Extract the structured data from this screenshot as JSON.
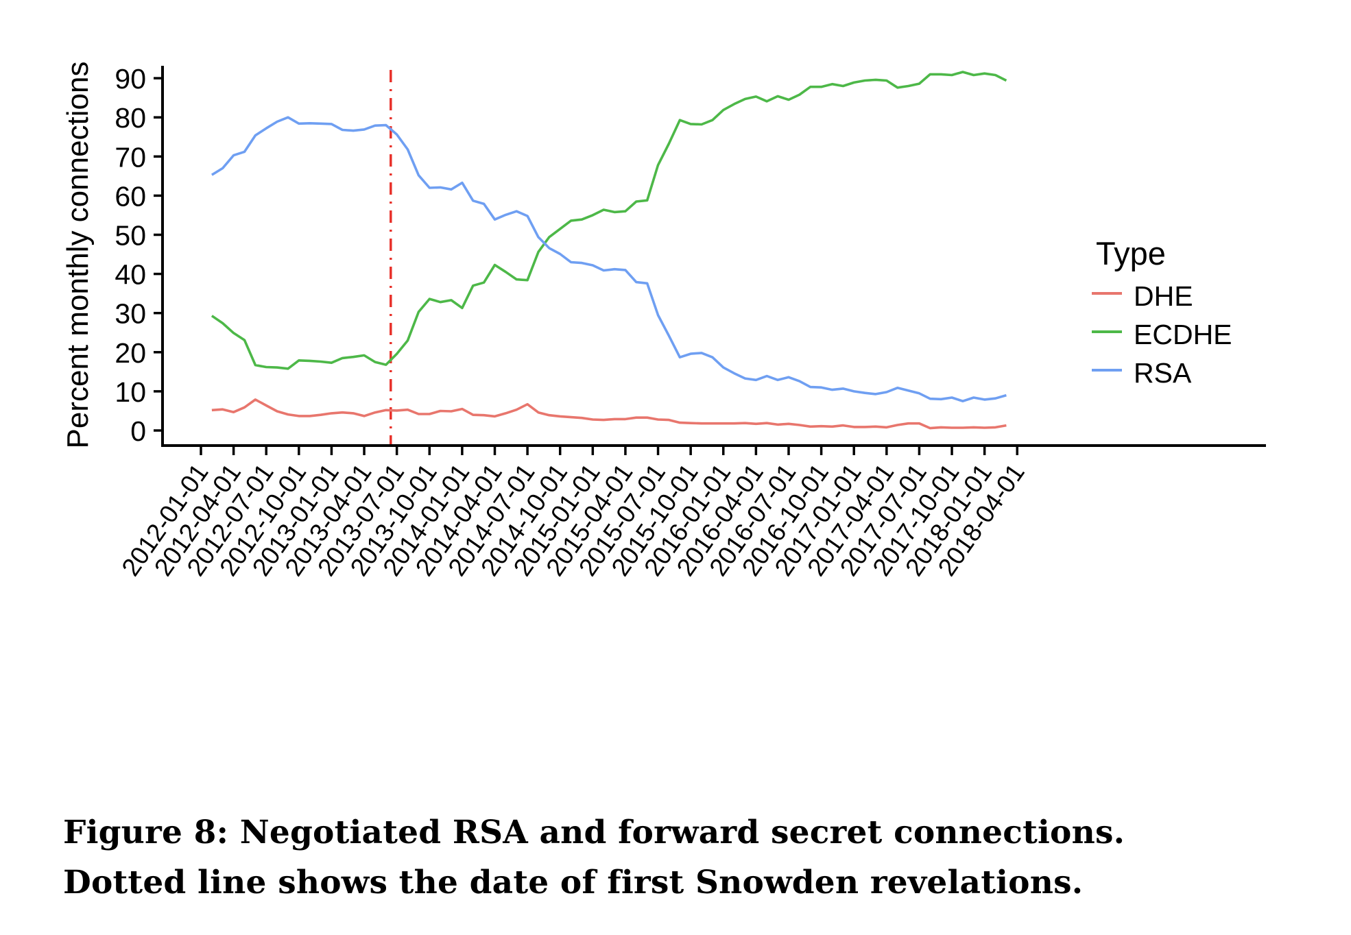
{
  "chart_data": {
    "type": "line",
    "title": "",
    "xlabel": "",
    "ylabel": "Percent monthly connections",
    "ylim": [
      -3,
      97
    ],
    "yticks": [
      0,
      10,
      20,
      30,
      40,
      50,
      60,
      70,
      80,
      90
    ],
    "xticks": [
      "2012-01-01",
      "2012-04-01",
      "2012-07-01",
      "2012-10-01",
      "2013-01-01",
      "2013-04-01",
      "2013-07-01",
      "2013-10-01",
      "2014-01-01",
      "2014-04-01",
      "2014-07-01",
      "2014-10-01",
      "2015-01-01",
      "2015-04-01",
      "2015-07-01",
      "2015-10-01",
      "2016-01-01",
      "2016-04-01",
      "2016-07-01",
      "2016-10-01",
      "2017-01-01",
      "2017-04-01",
      "2017-07-01",
      "2017-10-01",
      "2018-01-01",
      "2018-04-01"
    ],
    "x_start": "2012-02",
    "x_step": "1 month",
    "grid": false,
    "legend": {
      "title": "Type",
      "position": "right"
    },
    "annotations": [
      {
        "type": "vline",
        "x": "2013-06",
        "style": "dash-dot",
        "color": "#e8312a",
        "meaning": "date of first Snowden revelations"
      }
    ],
    "series": [
      {
        "name": "DHE",
        "color": "#e8766d",
        "values": [
          5.2,
          5.4,
          4.7,
          5.9,
          7.9,
          6.4,
          4.9,
          4.1,
          3.7,
          3.7,
          4.0,
          4.4,
          4.6,
          4.4,
          3.7,
          4.6,
          5.2,
          5.1,
          5.3,
          4.2,
          4.2,
          5.0,
          4.9,
          5.5,
          4.0,
          3.9,
          3.6,
          4.4,
          5.3,
          6.7,
          4.6,
          3.9,
          3.6,
          3.4,
          3.2,
          2.8,
          2.7,
          2.9,
          2.9,
          3.3,
          3.3,
          2.8,
          2.7,
          2.0,
          1.9,
          1.8,
          1.8,
          1.8,
          1.8,
          1.9,
          1.7,
          1.9,
          1.5,
          1.7,
          1.4,
          1.0,
          1.1,
          1.0,
          1.3,
          0.9,
          0.9,
          1.0,
          0.8,
          1.4,
          1.8,
          1.8,
          0.6,
          0.8,
          0.7,
          0.7,
          0.8,
          0.7,
          0.8,
          1.3
        ]
      },
      {
        "name": "ECDHE",
        "color": "#4db848",
        "values": [
          29.3,
          27.4,
          24.9,
          23.1,
          16.7,
          16.2,
          16.1,
          15.8,
          17.9,
          17.8,
          17.6,
          17.3,
          18.5,
          18.8,
          19.2,
          17.5,
          16.8,
          19.6,
          23.0,
          30.3,
          33.6,
          32.8,
          33.3,
          31.3,
          37.0,
          37.8,
          42.3,
          40.5,
          38.6,
          38.4,
          45.6,
          49.4,
          51.5,
          53.6,
          53.9,
          55.0,
          56.4,
          55.8,
          56.0,
          58.5,
          58.8,
          67.8,
          73.3,
          79.3,
          78.3,
          78.2,
          79.3,
          81.9,
          83.4,
          84.7,
          85.3,
          84.1,
          85.4,
          84.5,
          85.8,
          87.8,
          87.8,
          88.5,
          88.0,
          88.9,
          89.4,
          89.6,
          89.4,
          87.6,
          88.0,
          88.6,
          91.0,
          91.0,
          90.8,
          91.6,
          90.8,
          91.2,
          90.8,
          89.4
        ]
      },
      {
        "name": "RSA",
        "color": "#6f9ff2",
        "values": [
          65.3,
          67.0,
          70.3,
          71.2,
          75.4,
          77.2,
          78.9,
          80.0,
          78.4,
          78.5,
          78.4,
          78.3,
          76.8,
          76.6,
          76.9,
          77.9,
          78.0,
          75.6,
          71.8,
          65.2,
          62.0,
          62.1,
          61.6,
          63.3,
          58.7,
          57.9,
          53.9,
          55.1,
          56.0,
          54.8,
          49.4,
          46.6,
          45.1,
          43.0,
          42.8,
          42.2,
          40.9,
          41.2,
          41.0,
          37.9,
          37.6,
          29.5,
          24.2,
          18.7,
          19.6,
          19.8,
          18.7,
          16.1,
          14.6,
          13.3,
          12.9,
          13.9,
          12.9,
          13.6,
          12.6,
          11.1,
          11.0,
          10.4,
          10.7,
          10.0,
          9.6,
          9.3,
          9.8,
          10.9,
          10.2,
          9.5,
          8.1,
          8.0,
          8.4,
          7.5,
          8.4,
          7.9,
          8.2,
          9.0
        ]
      }
    ]
  },
  "legend": {
    "title": "Type",
    "items": [
      {
        "label": "DHE",
        "color": "#e8766d"
      },
      {
        "label": "ECDHE",
        "color": "#4db848"
      },
      {
        "label": "RSA",
        "color": "#6f9ff2"
      }
    ]
  },
  "caption": {
    "line1": "Figure 8: Negotiated RSA and forward secret connections.",
    "line2": "Dotted line shows the date of first Snowden revelations."
  }
}
